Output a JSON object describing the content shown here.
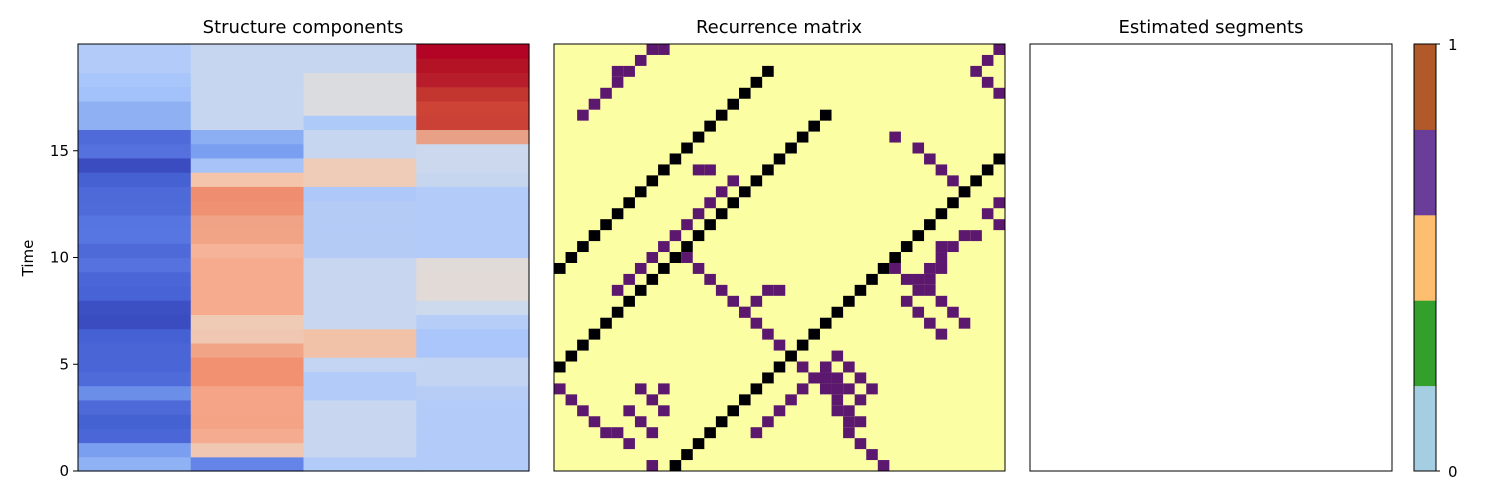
{
  "chart_data": [
    {
      "type": "heatmap",
      "title": "Structure components",
      "ylabel": "Time",
      "ylim": [
        0,
        20
      ],
      "yticks": [
        0,
        5,
        10,
        15
      ],
      "columns": 4,
      "colormap": "coolwarm",
      "cell_colors": [
        [
          "#8fb2f4",
          "#6584e8",
          "#b2cbf8",
          "#b2cbf8"
        ],
        [
          "#7b9ff0",
          "#efc7b2",
          "#c8d6ef",
          "#b2cbf8"
        ],
        [
          "#4b66d7",
          "#f4ab8f",
          "#c8d6ef",
          "#b2cbf8"
        ],
        [
          "#4562d3",
          "#f4a385",
          "#c8d6ef",
          "#b2cbf8"
        ],
        [
          "#4e6ad9",
          "#f6a487",
          "#c8d6ef",
          "#b2cbf8"
        ],
        [
          "#6b8ee9",
          "#f6a487",
          "#b2cbf8",
          "#b8cdf5"
        ],
        [
          "#4f6ad9",
          "#f29072",
          "#b2cbf8",
          "#c3d4f2"
        ],
        [
          "#4a65d6",
          "#f29072",
          "#c4d5f3",
          "#c3d4f2"
        ],
        [
          "#4a65d6",
          "#f2a486",
          "#f1c2a8",
          "#aac6fa"
        ],
        [
          "#4561d3",
          "#efc7b2",
          "#f1c2a8",
          "#aac6fa"
        ],
        [
          "#3b4cc0",
          "#efcbb5",
          "#c8d6ef",
          "#b5cdf7"
        ],
        [
          "#3d50c3",
          "#f6ab8f",
          "#c8d6ef",
          "#cdd9ec"
        ],
        [
          "#4763d5",
          "#f6ab8f",
          "#c8d6ef",
          "#e1dad6"
        ],
        [
          "#4a66d7",
          "#f6ab8f",
          "#c8d6ef",
          "#e1dad6"
        ],
        [
          "#5572df",
          "#f6ab8f",
          "#c8d6ef",
          "#e0dbd8"
        ],
        [
          "#4e69d8",
          "#f7b39a",
          "#b4cbf6",
          "#b2cbf8"
        ],
        [
          "#5876e1",
          "#f2a486",
          "#b4cbf6",
          "#b2cbf8"
        ],
        [
          "#5675e0",
          "#f1a387",
          "#b4cbf6",
          "#b2cbf8"
        ],
        [
          "#4f6bda",
          "#ee9273",
          "#b4cbf6",
          "#b2cbf8"
        ],
        [
          "#4e6ad9",
          "#ee8d6f",
          "#aec9f9",
          "#b2cbf8"
        ],
        [
          "#4661d2",
          "#f4c4ab",
          "#efccb7",
          "#c6d6ef"
        ],
        [
          "#3b4cc0",
          "#a8c3f8",
          "#efccb7",
          "#cbd8ee"
        ],
        [
          "#5471dd",
          "#7b9ff0",
          "#c7d6f0",
          "#cbd8ee"
        ],
        [
          "#4f6bda",
          "#8caef3",
          "#c7d6f0",
          "#e8a186"
        ],
        [
          "#8fb1f3",
          "#c6d5f0",
          "#aecaf9",
          "#cb4136"
        ],
        [
          "#8fb1f3",
          "#c6d5f0",
          "#dadcdf",
          "#cd4437"
        ],
        [
          "#a3c1fa",
          "#c6d5f0",
          "#dadcdf",
          "#c3362f"
        ],
        [
          "#a9c6fb",
          "#c6d5f0",
          "#dadcdf",
          "#b81d2c"
        ],
        [
          "#b2cbf8",
          "#c6d5f0",
          "#c6d5f0",
          "#b41326"
        ],
        [
          "#b2cbf8",
          "#c6d5f0",
          "#c6d5f0",
          "#b40426"
        ]
      ]
    },
    {
      "type": "heatmap",
      "title": "Recurrence matrix",
      "n": 39,
      "background": "#fcfea4",
      "diagonal_color": "#000004",
      "offdiag_color": "#5c186e",
      "offdiag_cells": [
        [
          8,
          0
        ],
        [
          6,
          2
        ],
        [
          5,
          3
        ],
        [
          8,
          3
        ],
        [
          7,
          4
        ],
        [
          6,
          5
        ],
        [
          9,
          5
        ],
        [
          8,
          6
        ],
        [
          7,
          7
        ],
        [
          9,
          7
        ],
        [
          28,
          0
        ],
        [
          27,
          1
        ],
        [
          26,
          2
        ],
        [
          25,
          3
        ],
        [
          25,
          4
        ],
        [
          26,
          4
        ],
        [
          24,
          5
        ],
        [
          25,
          5
        ],
        [
          24,
          6
        ],
        [
          26,
          6
        ],
        [
          23,
          7
        ],
        [
          24,
          7
        ],
        [
          25,
          7
        ],
        [
          27,
          7
        ],
        [
          22,
          8
        ],
        [
          23,
          8
        ],
        [
          24,
          8
        ],
        [
          26,
          8
        ],
        [
          21,
          9
        ],
        [
          23,
          9
        ],
        [
          25,
          9
        ],
        [
          20,
          10
        ],
        [
          24,
          10
        ],
        [
          19,
          11
        ],
        [
          18,
          12
        ],
        [
          17,
          13
        ],
        [
          16,
          14
        ],
        [
          15,
          15
        ],
        [
          14,
          16
        ],
        [
          13,
          17
        ],
        [
          12,
          18
        ],
        [
          11,
          19
        ],
        [
          35,
          13
        ],
        [
          34,
          14
        ],
        [
          33,
          15
        ],
        [
          32,
          16
        ],
        [
          31,
          17
        ],
        [
          32,
          18
        ],
        [
          33,
          19
        ],
        [
          33,
          20
        ],
        [
          34,
          20
        ],
        [
          35,
          21
        ],
        [
          36,
          21
        ],
        [
          38,
          22
        ],
        [
          39,
          22
        ],
        [
          37,
          23
        ],
        [
          38,
          24
        ],
        [
          39,
          24
        ],
        [
          35,
          25
        ],
        [
          34,
          26
        ],
        [
          33,
          27
        ],
        [
          32,
          28
        ],
        [
          31,
          29
        ],
        [
          29,
          30
        ],
        [
          2,
          32
        ],
        [
          3,
          33
        ],
        [
          4,
          34
        ],
        [
          5,
          35
        ],
        [
          5,
          36
        ],
        [
          6,
          36
        ],
        [
          7,
          37
        ],
        [
          8,
          38
        ],
        [
          9,
          38
        ],
        [
          10,
          39
        ],
        [
          12,
          27
        ],
        [
          13,
          27
        ],
        [
          15,
          26
        ],
        [
          14,
          25
        ],
        [
          13,
          24
        ],
        [
          12,
          23
        ],
        [
          11,
          22
        ],
        [
          10,
          21
        ],
        [
          9,
          20
        ],
        [
          8,
          19
        ],
        [
          7,
          18
        ],
        [
          6,
          17
        ],
        [
          5,
          16
        ],
        [
          37,
          35
        ],
        [
          38,
          34
        ],
        [
          36,
          36
        ],
        [
          37,
          37
        ],
        [
          38,
          38
        ],
        [
          17,
          3
        ],
        [
          18,
          4
        ],
        [
          19,
          5
        ],
        [
          20,
          6
        ],
        [
          21,
          7
        ],
        [
          22,
          8
        ],
        [
          29,
          18
        ],
        [
          30,
          17
        ],
        [
          31,
          16
        ],
        [
          32,
          17
        ],
        [
          33,
          18
        ],
        [
          30,
          15
        ],
        [
          31,
          14
        ],
        [
          32,
          13
        ],
        [
          33,
          12
        ],
        [
          4,
          3
        ],
        [
          3,
          4
        ],
        [
          2,
          5
        ],
        [
          1,
          6
        ],
        [
          0,
          7
        ],
        [
          16,
          14
        ],
        [
          17,
          15
        ],
        [
          18,
          16
        ],
        [
          19,
          16
        ]
      ]
    },
    {
      "type": "heatmap",
      "title": "Estimated segments",
      "colorbar": {
        "ticks": [
          "0",
          "1"
        ],
        "colors": [
          "#a6cee3",
          "#33a02c",
          "#fdbf6f",
          "#6a3d9a",
          "#b15928"
        ]
      }
    }
  ]
}
